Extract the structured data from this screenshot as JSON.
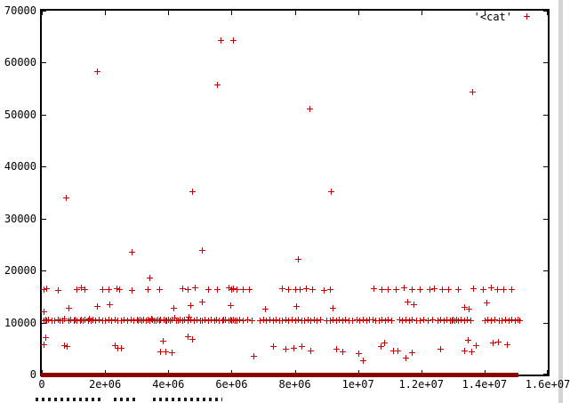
{
  "figure": {
    "legend_label": "'<cat'",
    "marker_color": "#cc0000",
    "zero_band_color": "#8b0000",
    "border_color": "#000000",
    "background": "#ffffff",
    "window_edge_color": "#d4d4d4"
  },
  "chart_data": {
    "type": "scatter",
    "title": "",
    "xlabel": "",
    "ylabel": "",
    "legend": "'<cat'",
    "legend_position": "top-right-inside",
    "grid": false,
    "marker": "plus",
    "xlim": [
      0,
      16000000
    ],
    "ylim": [
      0,
      70000
    ],
    "xtick_values": [
      0,
      2000000,
      4000000,
      6000000,
      8000000,
      10000000,
      12000000,
      14000000,
      16000000
    ],
    "xtick_labels": [
      "0",
      "2e+06",
      "4e+06",
      "6e+06",
      "8e+06",
      "1e+07",
      "1.2e+07",
      "1.4e+07",
      "1.6e+07"
    ],
    "ytick_values": [
      0,
      10000,
      20000,
      30000,
      40000,
      50000,
      60000,
      70000
    ],
    "ytick_labels": [
      "0",
      "10000",
      "20000",
      "30000",
      "40000",
      "50000",
      "60000",
      "70000"
    ],
    "x_unit_multiplier": 1000000,
    "zero_band": {
      "description": "dense band of overlapping markers along y=0",
      "x_start_millions": 0,
      "x_end_millions": 15.1
    },
    "points_x_millions_y": [
      [
        0.05,
        10500
      ],
      [
        0.1,
        10600
      ],
      [
        0.15,
        10400
      ],
      [
        0.2,
        10550
      ],
      [
        0.3,
        10500
      ],
      [
        0.4,
        10450
      ],
      [
        0.5,
        10600
      ],
      [
        0.55,
        10500
      ],
      [
        0.65,
        10400
      ],
      [
        0.7,
        10700
      ],
      [
        0.85,
        10500
      ],
      [
        0.9,
        10550
      ],
      [
        1.0,
        10500
      ],
      [
        1.05,
        10650
      ],
      [
        1.1,
        10450
      ],
      [
        1.2,
        10500
      ],
      [
        1.25,
        10600
      ],
      [
        1.3,
        10400
      ],
      [
        1.35,
        10550
      ],
      [
        1.45,
        10500
      ],
      [
        1.5,
        10700
      ],
      [
        1.55,
        10450
      ],
      [
        1.6,
        10550
      ],
      [
        1.7,
        10500
      ],
      [
        1.8,
        10600
      ],
      [
        1.9,
        10500
      ],
      [
        2.0,
        10400
      ],
      [
        2.1,
        10550
      ],
      [
        2.2,
        10500
      ],
      [
        2.3,
        10650
      ],
      [
        2.4,
        10500
      ],
      [
        2.5,
        10450
      ],
      [
        2.6,
        10550
      ],
      [
        2.7,
        10500
      ],
      [
        2.8,
        10600
      ],
      [
        2.9,
        10500
      ],
      [
        3.0,
        10550
      ],
      [
        3.05,
        10400
      ],
      [
        3.1,
        10650
      ],
      [
        3.15,
        10500
      ],
      [
        3.2,
        10550
      ],
      [
        3.3,
        10450
      ],
      [
        3.35,
        10600
      ],
      [
        3.4,
        10500
      ],
      [
        3.45,
        10700
      ],
      [
        3.5,
        10550
      ],
      [
        3.55,
        10500
      ],
      [
        3.6,
        10400
      ],
      [
        3.65,
        10600
      ],
      [
        3.7,
        10500
      ],
      [
        3.75,
        10550
      ],
      [
        3.85,
        10650
      ],
      [
        3.9,
        10500
      ],
      [
        3.95,
        10450
      ],
      [
        4.0,
        10550
      ],
      [
        4.05,
        10500
      ],
      [
        4.1,
        10600
      ],
      [
        4.2,
        11000
      ],
      [
        4.25,
        10500
      ],
      [
        4.3,
        10400
      ],
      [
        4.35,
        10550
      ],
      [
        4.45,
        10500
      ],
      [
        4.5,
        10650
      ],
      [
        4.6,
        10500
      ],
      [
        4.65,
        11200
      ],
      [
        4.7,
        10550
      ],
      [
        4.8,
        10500
      ],
      [
        4.9,
        10600
      ],
      [
        5.0,
        10500
      ],
      [
        5.05,
        10450
      ],
      [
        5.15,
        10550
      ],
      [
        5.25,
        10500
      ],
      [
        5.35,
        10650
      ],
      [
        5.45,
        10500
      ],
      [
        5.5,
        10550
      ],
      [
        5.6,
        10400
      ],
      [
        5.7,
        10500
      ],
      [
        5.75,
        10600
      ],
      [
        5.8,
        10550
      ],
      [
        5.9,
        10500
      ],
      [
        5.95,
        10650
      ],
      [
        6.0,
        10500
      ],
      [
        6.05,
        10550
      ],
      [
        6.1,
        10450
      ],
      [
        6.15,
        10500
      ],
      [
        6.25,
        10600
      ],
      [
        6.35,
        10500
      ],
      [
        6.5,
        10550
      ],
      [
        6.65,
        10500
      ],
      [
        6.9,
        10450
      ],
      [
        7.0,
        10550
      ],
      [
        7.1,
        10500
      ],
      [
        7.2,
        10650
      ],
      [
        7.3,
        10500
      ],
      [
        7.4,
        10550
      ],
      [
        7.5,
        10500
      ],
      [
        7.6,
        10400
      ],
      [
        7.7,
        10550
      ],
      [
        7.8,
        10500
      ],
      [
        7.9,
        10600
      ],
      [
        8.0,
        10500
      ],
      [
        8.1,
        10550
      ],
      [
        8.2,
        10450
      ],
      [
        8.3,
        10500
      ],
      [
        8.4,
        10600
      ],
      [
        8.5,
        10500
      ],
      [
        8.6,
        10550
      ],
      [
        8.7,
        10500
      ],
      [
        8.8,
        10650
      ],
      [
        9.0,
        10500
      ],
      [
        9.1,
        10400
      ],
      [
        9.2,
        10550
      ],
      [
        9.3,
        10500
      ],
      [
        9.4,
        10600
      ],
      [
        9.5,
        10500
      ],
      [
        9.6,
        10550
      ],
      [
        9.7,
        10450
      ],
      [
        9.8,
        10500
      ],
      [
        9.95,
        10550
      ],
      [
        10.05,
        10500
      ],
      [
        10.15,
        10600
      ],
      [
        10.25,
        10500
      ],
      [
        10.35,
        10550
      ],
      [
        10.45,
        10650
      ],
      [
        10.55,
        10500
      ],
      [
        10.65,
        10400
      ],
      [
        10.75,
        10550
      ],
      [
        10.85,
        10500
      ],
      [
        10.95,
        10600
      ],
      [
        11.05,
        10500
      ],
      [
        11.3,
        10550
      ],
      [
        11.4,
        10500
      ],
      [
        11.5,
        10650
      ],
      [
        11.6,
        10500
      ],
      [
        11.7,
        10550
      ],
      [
        11.85,
        10450
      ],
      [
        11.95,
        10500
      ],
      [
        12.05,
        10600
      ],
      [
        12.2,
        10500
      ],
      [
        12.35,
        10550
      ],
      [
        12.5,
        10500
      ],
      [
        12.6,
        10650
      ],
      [
        12.7,
        10500
      ],
      [
        12.8,
        10550
      ],
      [
        12.9,
        10500
      ],
      [
        12.95,
        10400
      ],
      [
        13.0,
        10600
      ],
      [
        13.05,
        10500
      ],
      [
        13.1,
        10550
      ],
      [
        13.15,
        10500
      ],
      [
        13.25,
        10650
      ],
      [
        13.35,
        10500
      ],
      [
        13.45,
        10550
      ],
      [
        13.55,
        10500
      ],
      [
        14.0,
        10500
      ],
      [
        14.1,
        10600
      ],
      [
        14.2,
        10500
      ],
      [
        14.3,
        10550
      ],
      [
        14.45,
        10450
      ],
      [
        14.55,
        10500
      ],
      [
        14.65,
        10600
      ],
      [
        14.75,
        10500
      ],
      [
        14.85,
        10550
      ],
      [
        14.95,
        10500
      ],
      [
        15.05,
        10600
      ],
      [
        15.1,
        10500
      ],
      [
        0.05,
        16400
      ],
      [
        0.15,
        16600
      ],
      [
        0.5,
        16300
      ],
      [
        1.1,
        16500
      ],
      [
        1.25,
        16700
      ],
      [
        1.35,
        16400
      ],
      [
        1.9,
        16500
      ],
      [
        2.1,
        16400
      ],
      [
        2.35,
        16600
      ],
      [
        2.45,
        16500
      ],
      [
        2.85,
        16300
      ],
      [
        3.35,
        16500
      ],
      [
        3.7,
        16400
      ],
      [
        4.45,
        16600
      ],
      [
        4.6,
        16500
      ],
      [
        4.85,
        16700
      ],
      [
        5.25,
        16500
      ],
      [
        5.55,
        16400
      ],
      [
        5.9,
        16800
      ],
      [
        6.0,
        16500
      ],
      [
        6.05,
        16600
      ],
      [
        6.15,
        16500
      ],
      [
        6.35,
        16400
      ],
      [
        6.55,
        16500
      ],
      [
        7.6,
        16600
      ],
      [
        7.8,
        16500
      ],
      [
        8.0,
        16400
      ],
      [
        8.15,
        16500
      ],
      [
        8.35,
        16600
      ],
      [
        8.55,
        16500
      ],
      [
        8.9,
        16300
      ],
      [
        9.1,
        16500
      ],
      [
        10.5,
        16600
      ],
      [
        10.75,
        16500
      ],
      [
        10.95,
        16400
      ],
      [
        11.2,
        16500
      ],
      [
        11.45,
        16700
      ],
      [
        11.7,
        16500
      ],
      [
        11.95,
        16400
      ],
      [
        12.25,
        16500
      ],
      [
        12.4,
        16600
      ],
      [
        12.65,
        16500
      ],
      [
        12.85,
        16400
      ],
      [
        13.15,
        16500
      ],
      [
        13.65,
        16600
      ],
      [
        13.95,
        16500
      ],
      [
        14.2,
        16700
      ],
      [
        14.4,
        16500
      ],
      [
        14.6,
        16400
      ],
      [
        14.85,
        16500
      ],
      [
        0.05,
        12100
      ],
      [
        0.85,
        12800
      ],
      [
        1.75,
        13200
      ],
      [
        2.15,
        13500
      ],
      [
        3.4,
        18600
      ],
      [
        4.15,
        12900
      ],
      [
        4.7,
        13400
      ],
      [
        5.05,
        14000
      ],
      [
        5.95,
        13300
      ],
      [
        7.05,
        12700
      ],
      [
        8.05,
        13100
      ],
      [
        9.2,
        12800
      ],
      [
        11.55,
        14100
      ],
      [
        11.75,
        13600
      ],
      [
        13.35,
        13000
      ],
      [
        13.5,
        12600
      ],
      [
        14.05,
        13900
      ],
      [
        0.05,
        5900
      ],
      [
        0.1,
        7200
      ],
      [
        0.7,
        5600
      ],
      [
        0.78,
        5400
      ],
      [
        2.3,
        5700
      ],
      [
        2.38,
        5100
      ],
      [
        2.5,
        5200
      ],
      [
        3.75,
        4500
      ],
      [
        3.82,
        6500
      ],
      [
        3.9,
        4400
      ],
      [
        4.1,
        4300
      ],
      [
        4.6,
        7300
      ],
      [
        4.75,
        6900
      ],
      [
        6.7,
        3600
      ],
      [
        7.3,
        5400
      ],
      [
        7.7,
        4900
      ],
      [
        7.95,
        5100
      ],
      [
        8.2,
        5500
      ],
      [
        8.5,
        4600
      ],
      [
        9.3,
        4900
      ],
      [
        9.5,
        4400
      ],
      [
        10.0,
        4100
      ],
      [
        10.15,
        2700
      ],
      [
        10.7,
        5400
      ],
      [
        10.82,
        6100
      ],
      [
        11.1,
        4600
      ],
      [
        11.25,
        4700
      ],
      [
        11.5,
        3300
      ],
      [
        11.7,
        4300
      ],
      [
        12.6,
        4900
      ],
      [
        13.35,
        4600
      ],
      [
        13.48,
        6600
      ],
      [
        13.58,
        4400
      ],
      [
        13.72,
        5600
      ],
      [
        14.25,
        6100
      ],
      [
        14.42,
        6400
      ],
      [
        14.7,
        5900
      ],
      [
        0.75,
        34000
      ],
      [
        4.75,
        35200
      ],
      [
        9.15,
        35300
      ],
      [
        1.75,
        58300
      ],
      [
        5.65,
        64400
      ],
      [
        6.05,
        64300
      ],
      [
        5.55,
        55800
      ],
      [
        8.45,
        51200
      ],
      [
        13.6,
        54500
      ],
      [
        2.85,
        23600
      ],
      [
        5.05,
        24000
      ],
      [
        8.1,
        22200
      ]
    ]
  }
}
